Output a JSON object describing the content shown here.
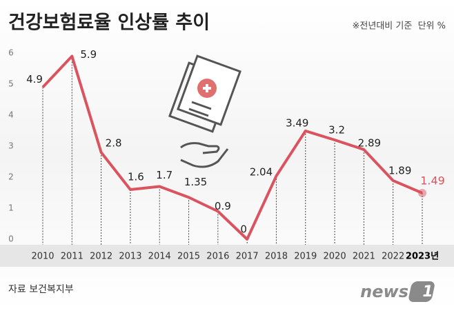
{
  "chart_data": {
    "type": "line",
    "title": "건강보험료율 인상률 추이",
    "subtitle": "※전년대비 기준  단위 %",
    "source": "자료 보건복지부",
    "logo": {
      "text": "news",
      "mark": "1"
    },
    "categories": [
      "2010",
      "2011",
      "2012",
      "2013",
      "2014",
      "2015",
      "2016",
      "2017",
      "2018",
      "2019",
      "2020",
      "2021",
      "2022",
      "2023년"
    ],
    "series": [
      {
        "name": "건강보험료율 인상률",
        "color": "#d9545f",
        "values": [
          4.9,
          5.9,
          2.8,
          1.6,
          1.7,
          1.35,
          0.9,
          0,
          2.04,
          3.49,
          3.2,
          2.89,
          1.89,
          1.49
        ]
      }
    ],
    "ylim": [
      0,
      6
    ],
    "yticks": [
      0,
      1,
      2,
      3,
      4,
      5,
      6
    ],
    "highlight_last": true
  }
}
